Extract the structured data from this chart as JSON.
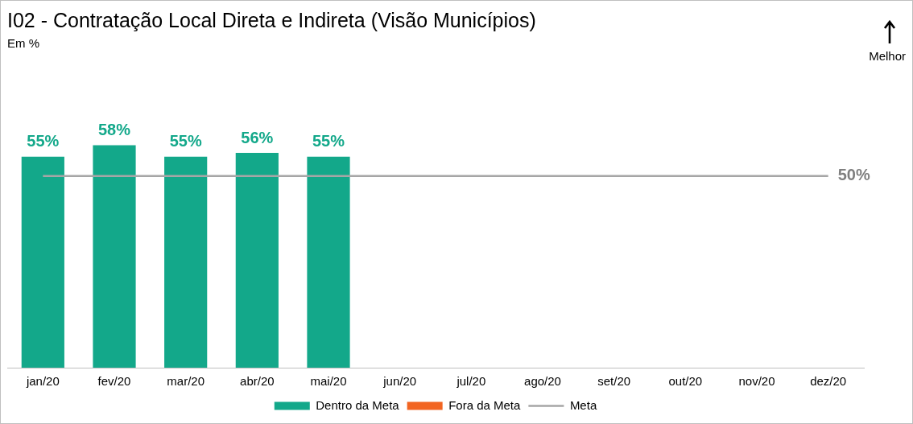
{
  "chart_data": {
    "type": "bar",
    "title": "I02 - Contratação Local Direta e Indireta (Visão Municípios)",
    "subtitle": "Em %",
    "annotations": [
      "Melhor"
    ],
    "categories": [
      "jan/20",
      "fev/20",
      "mar/20",
      "abr/20",
      "mai/20",
      "jun/20",
      "jul/20",
      "ago/20",
      "set/20",
      "out/20",
      "nov/20",
      "dez/20"
    ],
    "series": [
      {
        "name": "Dentro da Meta",
        "color": "#13a88a",
        "values": [
          55,
          58,
          55,
          56,
          55,
          null,
          null,
          null,
          null,
          null,
          null,
          null
        ],
        "value_labels": [
          "55%",
          "58%",
          "55%",
          "56%",
          "55%",
          null,
          null,
          null,
          null,
          null,
          null,
          null
        ]
      },
      {
        "name": "Fora da Meta",
        "color": "#f26522",
        "values": [
          null,
          null,
          null,
          null,
          null,
          null,
          null,
          null,
          null,
          null,
          null,
          null
        ]
      },
      {
        "name": "Meta",
        "type": "line",
        "color": "#a6a6a6",
        "values": [
          50,
          50,
          50,
          50,
          50,
          50,
          50,
          50,
          50,
          50,
          50,
          50
        ],
        "value_labels": [
          null,
          null,
          null,
          null,
          null,
          null,
          null,
          null,
          null,
          null,
          null,
          "50%"
        ]
      }
    ],
    "tick_labels": "x",
    "grid": false,
    "legend": "bottom",
    "marker": "none"
  }
}
